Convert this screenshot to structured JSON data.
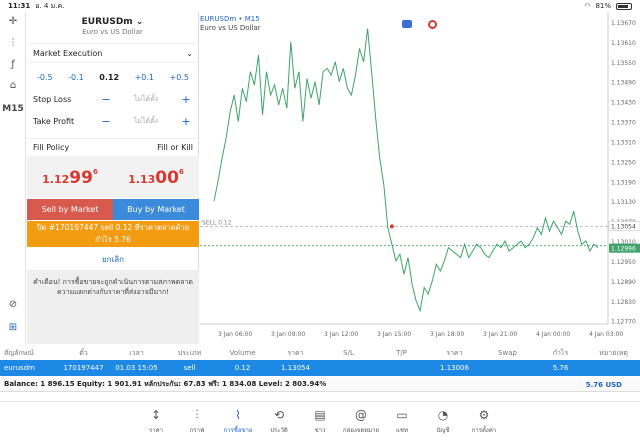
{
  "status": {
    "time": "11:31",
    "date": "อ. 4 ม.ค.",
    "battery": "81%"
  },
  "tools": {
    "timeframe": "M15"
  },
  "panel": {
    "symbol": "EURUSDm",
    "symbol_desc": "Euro vs US Dollar",
    "execution": "Market Execution",
    "volume_steps": [
      "-0.5",
      "-0.1",
      "0.12",
      "+0.1",
      "+0.5"
    ],
    "stop_loss": {
      "label": "Stop Loss",
      "placeholder": "ไม่ได้ตั้ง"
    },
    "take_profit": {
      "label": "Take Profit",
      "placeholder": "ไม่ได้ตั้ง"
    },
    "fill_policy": {
      "label": "Fill Policy",
      "value": "Fill or Kill"
    },
    "bid": {
      "pre": "1.12",
      "big": "99",
      "sup": "6"
    },
    "ask": {
      "pre": "1.13",
      "big": "00",
      "sup": "6"
    },
    "sell_label": "Sell by Market",
    "buy_label": "Buy by Market",
    "notice": "ปิด #170197447 sell 0.12 ที่ราคาตลาดด้วยกำไร 5.76",
    "cancel": "ยกเลิก",
    "warning": "คำเตือน! การซื้อขายจะถูกดำเนินการตามสภาพตลาด ความแตกต่างกับราคาที่ส่งอาจมีมาก!"
  },
  "chart": {
    "title": "EURUSDm • M15",
    "subtitle": "Euro vs US Dollar",
    "sell_label": "SELL 0.12",
    "current_price": "1.12996",
    "open_price": "1.13054",
    "y_ticks": [
      "1.13670",
      "1.13610",
      "1.13550",
      "1.13490",
      "1.13430",
      "1.13370",
      "1.13310",
      "1.13250",
      "1.13190",
      "1.13130",
      "1.13070",
      "1.13054",
      "1.13010",
      "1.12996",
      "1.12950",
      "1.12890",
      "1.12830",
      "1.12770"
    ],
    "x_ticks": [
      "3 Jan 06:00",
      "3 Jan 09:00",
      "3 Jan 12:00",
      "3 Jan 15:00",
      "3 Jan 18:00",
      "3 Jan 21:00",
      "4 Jan 00:00",
      "4 Jan 03:00"
    ]
  },
  "chart_data": {
    "type": "line",
    "title": "EURUSDm • M15",
    "xlabel": "",
    "ylabel": "",
    "ylim": [
      1.1276,
      1.137
    ],
    "x_ticks": [
      "3 Jan 06:00",
      "3 Jan 09:00",
      "3 Jan 12:00",
      "3 Jan 15:00",
      "3 Jan 18:00",
      "3 Jan 21:00",
      "4 Jan 00:00",
      "4 Jan 03:00"
    ],
    "series": [
      {
        "values": [
          1.1313,
          1.1319,
          1.1326,
          1.1332,
          1.134,
          1.1345,
          1.1337,
          1.1347,
          1.1343,
          1.1352,
          1.1348,
          1.1357,
          1.1339,
          1.1352,
          1.1345,
          1.1348,
          1.1342,
          1.1347,
          1.1341,
          1.1361,
          1.1347,
          1.1352,
          1.1337,
          1.135,
          1.1344,
          1.1349,
          1.1342,
          1.1352,
          1.1353,
          1.1351,
          1.1355,
          1.1349,
          1.1353,
          1.1347,
          1.1345,
          1.1351,
          1.1359,
          1.1355,
          1.1365,
          1.1352,
          1.1338,
          1.1326,
          1.1318,
          1.1305,
          1.13,
          1.1295,
          1.1297,
          1.1291,
          1.1296,
          1.1288,
          1.1283,
          1.128,
          1.1287,
          1.1285,
          1.1289,
          1.1294,
          1.1292,
          1.1295,
          1.1299,
          1.1298,
          1.1297,
          1.1296,
          1.13,
          1.1296,
          1.1298,
          1.13,
          1.1299,
          1.1297,
          1.1296,
          1.1298,
          1.13,
          1.1299,
          1.1301,
          1.1298,
          1.1299,
          1.13,
          1.1301,
          1.1299,
          1.13,
          1.1302,
          1.1305,
          1.1303,
          1.1308,
          1.1304,
          1.1307,
          1.1305,
          1.1303,
          1.1307,
          1.1306,
          1.131,
          1.1304,
          1.13,
          1.1301,
          1.1298,
          1.13,
          1.1299
        ]
      }
    ],
    "reference_lines": [
      {
        "label": "SELL 0.12",
        "value": 1.13054
      },
      {
        "label": "bid",
        "value": 1.12996
      }
    ],
    "grid": true
  },
  "table": {
    "headers": [
      "สัญลักษณ์",
      "ตั๋ว",
      "เวลา",
      "ประเภท",
      "Volume",
      "ราคา",
      "S/L",
      "T/P",
      "ราคา",
      "Swap",
      "กำไร",
      "หมายเหตุ"
    ],
    "row": [
      "eurusdm",
      "170197447",
      "01.03 15:05",
      "sell",
      "0.12",
      "1.13054",
      "",
      "",
      "1.13006",
      "",
      "5.76",
      ""
    ],
    "balance": "Balance: 1 896.15 Equity: 1 901.91 หลักประกัน: 67.83 ฟรี: 1 834.08 Level: 2 803.94%",
    "profit": "5.76  USD"
  },
  "nav": [
    {
      "icon": "↕",
      "label": "ราคา"
    },
    {
      "icon": "⫶",
      "label": "กราฟ"
    },
    {
      "icon": "⌇",
      "label": "การซื้อขาย"
    },
    {
      "icon": "⟲",
      "label": "ประวัติ"
    },
    {
      "icon": "▤",
      "label": "ข่าว"
    },
    {
      "icon": "@",
      "label": "กล่องจดหมาย"
    },
    {
      "icon": "▭",
      "label": "แชท"
    },
    {
      "icon": "◔",
      "label": "บัญชี"
    },
    {
      "icon": "⚙",
      "label": "การตั้งค่า"
    }
  ],
  "colors": {
    "accent": "#1b66c9",
    "line": "#3fa36b",
    "sell": "#d85a4e",
    "buy": "#3c8bdb",
    "notice": "#f39c12",
    "row": "#1e88e5"
  }
}
